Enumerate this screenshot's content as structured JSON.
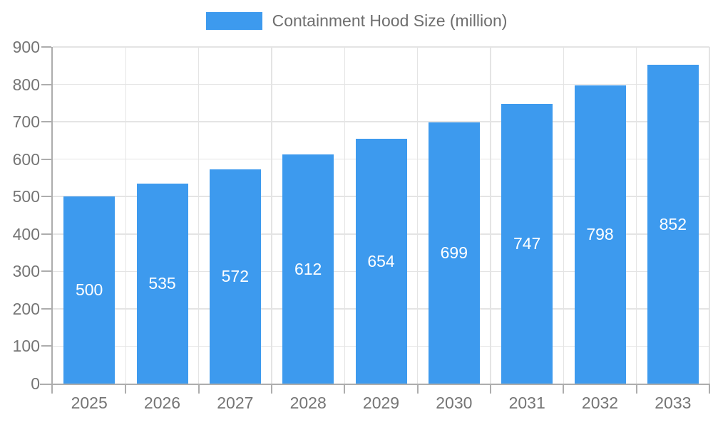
{
  "legend": {
    "label": "Containment Hood Size (million)"
  },
  "chart_data": {
    "type": "bar",
    "title": "Containment Hood Size (million)",
    "categories": [
      "2025",
      "2026",
      "2027",
      "2028",
      "2029",
      "2030",
      "2031",
      "2032",
      "2033"
    ],
    "series": [
      {
        "name": "Containment Hood Size (million)",
        "values": [
          500,
          535,
          572,
          612,
          654,
          699,
          747,
          798,
          852
        ]
      }
    ],
    "xlabel": "",
    "ylabel": "",
    "ylim": [
      0,
      900
    ],
    "y_tick_step": 100,
    "y_tick_labels": [
      "0",
      "100",
      "200",
      "300",
      "400",
      "500",
      "600",
      "700",
      "800",
      "900"
    ],
    "grid": true,
    "legend_position": "top",
    "value_labels": "inside-center"
  },
  "colors": {
    "bar": "#3d9aee",
    "value_label": "#ffffff",
    "axis_line": "#adadad",
    "gridline": "#e4e4e4",
    "tick_label": "#757575",
    "legend_text": "#6e6e6e",
    "background": "#ffffff"
  }
}
